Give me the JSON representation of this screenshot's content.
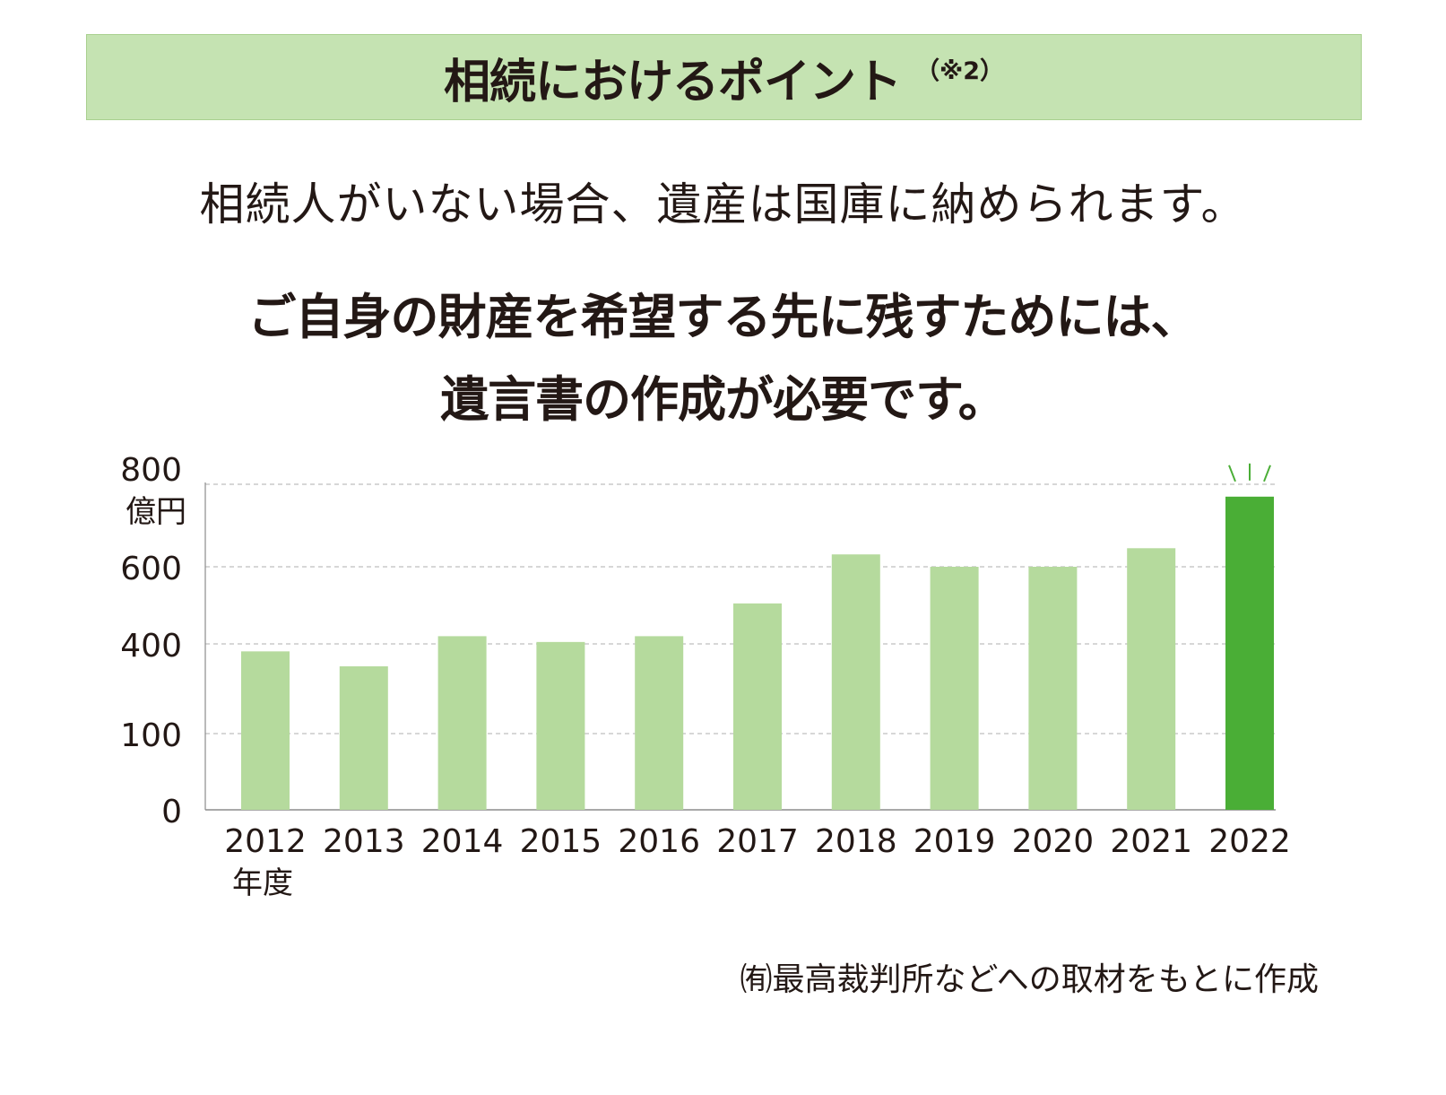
{
  "banner": {
    "title": "相続におけるポイント",
    "note": "（※2）"
  },
  "lead_text": "相続人がいない場合、遺産は国庫に納められます。",
  "emphasis": {
    "line1": "ご自身の財産を希望する先に残すためには、",
    "line2": "遺言書の作成が必要です。"
  },
  "chart_data": {
    "type": "bar",
    "categories": [
      "2012",
      "2013",
      "2014",
      "2015",
      "2016",
      "2017",
      "2018",
      "2019",
      "2020",
      "2021",
      "2022"
    ],
    "values": [
      375,
      325,
      420,
      405,
      420,
      505,
      630,
      600,
      600,
      645,
      770
    ],
    "xlabel": "年度",
    "ylabel": "億円",
    "y_ticks": [
      "0",
      "100",
      "400",
      "600",
      "800"
    ],
    "grid": true,
    "colors": {
      "bar": "#b5da9d",
      "highlight": "#4aae36",
      "grid": "#bfbfbf",
      "axis": "#8c8c8c"
    },
    "highlight_category": "2022"
  },
  "source_note": "㈲最高裁判所などへの取材をもとに作成"
}
